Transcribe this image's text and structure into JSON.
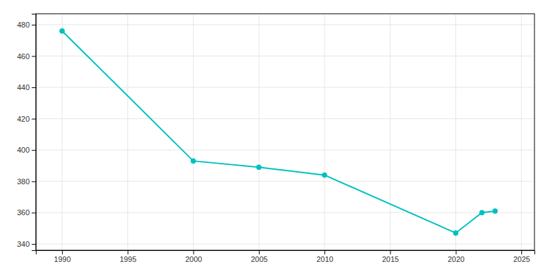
{
  "chart_data": {
    "type": "line",
    "x": [
      1990,
      2000,
      2005,
      2010,
      2020,
      2022,
      2023
    ],
    "values": [
      476,
      393,
      389,
      384,
      347,
      360,
      361
    ],
    "color": "#00C0C0",
    "marker": "circle",
    "xlim": [
      1988,
      2026
    ],
    "ylim": [
      336,
      487
    ],
    "xticks": [
      1990,
      1995,
      2000,
      2005,
      2010,
      2015,
      2020,
      2025
    ],
    "yticks": [
      340,
      360,
      380,
      400,
      420,
      440,
      460,
      480
    ],
    "grid": true
  }
}
